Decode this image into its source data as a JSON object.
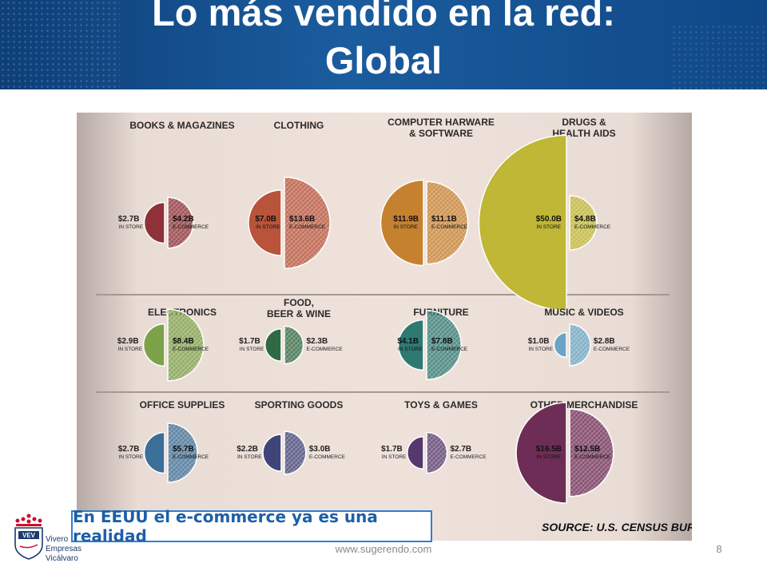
{
  "slide": {
    "title_line1": "Lo más vendido en la red:",
    "title_line2": "Global",
    "callout": "En EEUU el e-commerce ya es una realidad",
    "footer_url": "www.sugerendo.com",
    "page_number": "8"
  },
  "logo": {
    "badge": "VEV",
    "lines": [
      "Vivero",
      "Empresas",
      "Vicálvaro"
    ],
    "icon": "crown-logo-icon"
  },
  "infographic": {
    "source": "SOURCE: U.S. CENSUS BUREAU",
    "in_store_label": "IN STORE",
    "ecommerce_label": "E-COMMERCE"
  },
  "chart_data": {
    "type": "semicircle-pairs",
    "unit": "billion USD",
    "series_names": [
      "IN STORE",
      "E-COMMERCE"
    ],
    "categories": [
      {
        "name": [
          "BOOKS & MAGAZINES"
        ],
        "in_store": 2.7,
        "in_store_label": "$2.7B",
        "ecommerce": 4.2,
        "ecommerce_label": "$4.2B",
        "color": "#8e3138"
      },
      {
        "name": [
          "CLOTHING"
        ],
        "in_store": 7.0,
        "in_store_label": "$7.0B",
        "ecommerce": 13.6,
        "ecommerce_label": "$13.6B",
        "color": "#b9533a"
      },
      {
        "name": [
          "COMPUTER HARWARE",
          "& SOFTWARE"
        ],
        "in_store": 11.9,
        "in_store_label": "$11.9B",
        "ecommerce": 11.1,
        "ecommerce_label": "$11.1B",
        "color": "#c6812f"
      },
      {
        "name": [
          "DRUGS &",
          "HEALTH AIDS"
        ],
        "in_store": 50.0,
        "in_store_label": "$50.0B",
        "ecommerce": 4.8,
        "ecommerce_label": "$4.8B",
        "color": "#bfb735"
      },
      {
        "name": [
          "ELECTRONICS"
        ],
        "in_store": 2.9,
        "in_store_label": "$2.9B",
        "ecommerce": 8.4,
        "ecommerce_label": "$8.4B",
        "color": "#7ea24a"
      },
      {
        "name": [
          "FOOD,",
          "BEER & WINE"
        ],
        "in_store": 1.7,
        "in_store_label": "$1.7B",
        "ecommerce": 2.3,
        "ecommerce_label": "$2.3B",
        "color": "#2f6a44"
      },
      {
        "name": [
          "FURNITURE"
        ],
        "in_store": 4.1,
        "in_store_label": "$4.1B",
        "ecommerce": 7.8,
        "ecommerce_label": "$7.8B",
        "color": "#2e7a72"
      },
      {
        "name": [
          "MUSIC & VIDEOS"
        ],
        "in_store": 1.0,
        "in_store_label": "$1.0B",
        "ecommerce": 2.8,
        "ecommerce_label": "$2.8B",
        "color": "#6aa5c5"
      },
      {
        "name": [
          "OFFICE SUPPLIES"
        ],
        "in_store": 2.7,
        "in_store_label": "$2.7B",
        "ecommerce": 5.7,
        "ecommerce_label": "$5.7B",
        "color": "#3c6f98"
      },
      {
        "name": [
          "SPORTING GOODS"
        ],
        "in_store": 2.2,
        "in_store_label": "$2.2B",
        "ecommerce": 3.0,
        "ecommerce_label": "$3.0B",
        "color": "#3f4479"
      },
      {
        "name": [
          "TOYS & GAMES"
        ],
        "in_store": 1.7,
        "in_store_label": "$1.7B",
        "ecommerce": 2.7,
        "ecommerce_label": "$2.7B",
        "color": "#56386e"
      },
      {
        "name": [
          "OTHER MERCHANDISE"
        ],
        "in_store": 16.5,
        "in_store_label": "$16.5B",
        "ecommerce": 12.5,
        "ecommerce_label": "$12.5B",
        "color": "#6e2d57"
      }
    ]
  }
}
